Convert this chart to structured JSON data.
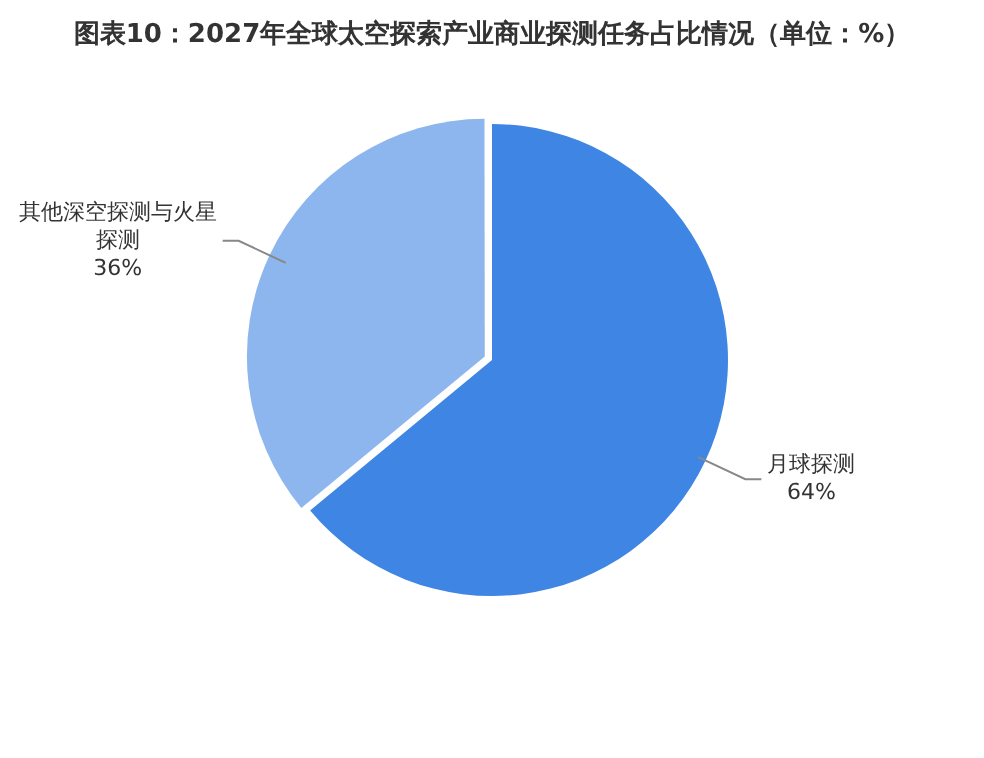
{
  "chart_data": {
    "type": "pie",
    "title": "图表10：2027年全球太空探索产业商业探测任务占比情况（单位：%）",
    "categories": [
      "月球探测",
      "其他深空探测与火星探测"
    ],
    "values": [
      64,
      36
    ],
    "colors": [
      "#3f86e4",
      "#8db5ee"
    ],
    "value_labels": [
      "64%",
      "36%"
    ],
    "legend": false
  }
}
